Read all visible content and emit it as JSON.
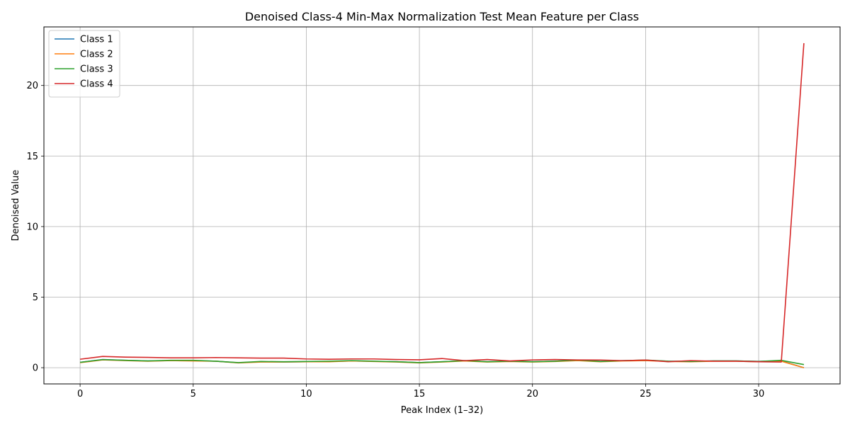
{
  "chart_data": {
    "type": "line",
    "title": "Denoised Class-4 Min-Max Normalization Test Mean Feature per Class",
    "xlabel": "Peak Index (1–32)",
    "ylabel": "Denoised Value",
    "xlim": [
      -1.6,
      33.6
    ],
    "ylim": [
      -1.15,
      24.15
    ],
    "xticks": [
      0,
      5,
      10,
      15,
      20,
      25,
      30
    ],
    "yticks": [
      0,
      5,
      10,
      15,
      20
    ],
    "grid": true,
    "legend": "top-left",
    "x": [
      0,
      1,
      2,
      3,
      4,
      5,
      6,
      7,
      8,
      9,
      10,
      11,
      12,
      13,
      14,
      15,
      16,
      17,
      18,
      19,
      20,
      21,
      22,
      23,
      24,
      25,
      26,
      27,
      28,
      29,
      30,
      31,
      32
    ],
    "series": [
      {
        "name": "Class 1",
        "color": "#1f77b4",
        "values": [
          0.38,
          0.58,
          0.52,
          0.48,
          0.5,
          0.5,
          0.46,
          0.35,
          0.42,
          0.4,
          0.42,
          0.44,
          0.48,
          0.45,
          0.42,
          0.36,
          0.42,
          0.5,
          0.42,
          0.46,
          0.42,
          0.46,
          0.52,
          0.45,
          0.5,
          0.52,
          0.46,
          0.45,
          0.48,
          0.48,
          0.45,
          0.48,
          0.0
        ]
      },
      {
        "name": "Class 2",
        "color": "#ff7f0e",
        "values": [
          0.36,
          0.55,
          0.5,
          0.46,
          0.5,
          0.48,
          0.46,
          0.34,
          0.4,
          0.4,
          0.42,
          0.42,
          0.48,
          0.44,
          0.4,
          0.34,
          0.4,
          0.48,
          0.4,
          0.44,
          0.4,
          0.44,
          0.5,
          0.42,
          0.48,
          0.5,
          0.44,
          0.42,
          0.46,
          0.46,
          0.42,
          0.46,
          0.0
        ]
      },
      {
        "name": "Class 3",
        "color": "#2ca02c",
        "values": [
          0.38,
          0.57,
          0.52,
          0.48,
          0.52,
          0.52,
          0.46,
          0.36,
          0.44,
          0.42,
          0.44,
          0.46,
          0.5,
          0.46,
          0.42,
          0.36,
          0.42,
          0.5,
          0.42,
          0.46,
          0.42,
          0.46,
          0.54,
          0.44,
          0.5,
          0.54,
          0.46,
          0.44,
          0.48,
          0.48,
          0.44,
          0.52,
          0.22
        ]
      },
      {
        "name": "Class 4",
        "color": "#d62728",
        "values": [
          0.6,
          0.8,
          0.75,
          0.73,
          0.7,
          0.7,
          0.72,
          0.7,
          0.68,
          0.68,
          0.62,
          0.6,
          0.62,
          0.62,
          0.58,
          0.56,
          0.65,
          0.5,
          0.58,
          0.48,
          0.55,
          0.58,
          0.55,
          0.54,
          0.5,
          0.54,
          0.42,
          0.5,
          0.46,
          0.46,
          0.42,
          0.4,
          23.0
        ]
      }
    ]
  }
}
